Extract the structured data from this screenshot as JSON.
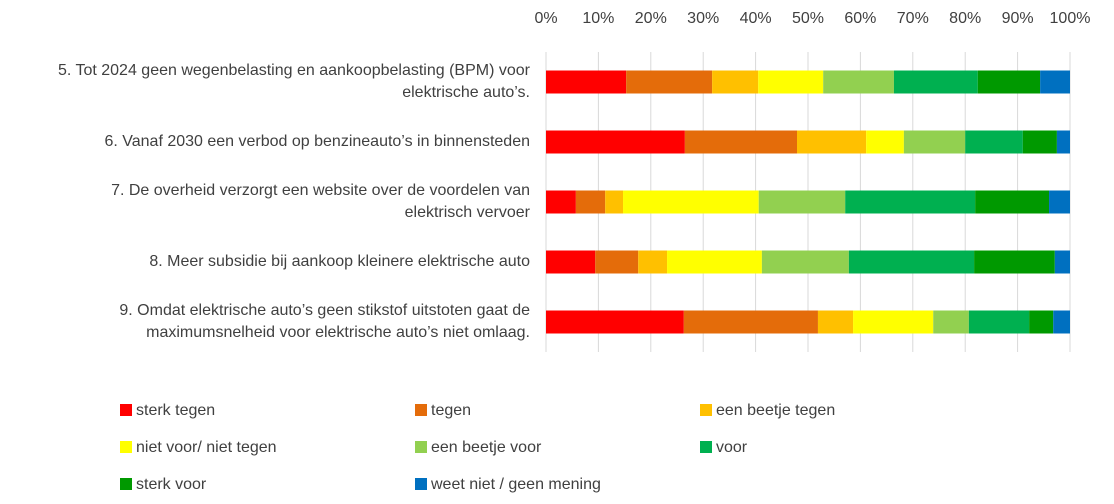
{
  "chart_data": {
    "type": "stacked-bar-horizontal",
    "categories": [
      "5. Tot 2024 geen wegenbelasting en aankoopbelasting (BPM) voor elektrische auto’s.",
      "6. Vanaf 2030 een verbod op benzineauto’s in binnensteden",
      "7. De overheid verzorgt een website over de voordelen van elektrisch vervoer",
      "8. Meer subsidie bij aankoop kleinere elektrische auto",
      "9. Omdat elektrische auto’s geen stikstof uitstoten gaat de maximumsnelheid voor elektrische auto’s niet omlaag."
    ],
    "series": [
      {
        "name": "sterk tegen",
        "color": "#ff0000",
        "values": [
          15.3,
          26.5,
          5.7,
          9.4,
          26.3
        ]
      },
      {
        "name": "tegen",
        "color": "#e46c0a",
        "values": [
          16.4,
          21.4,
          5.6,
          8.2,
          25.6
        ]
      },
      {
        "name": "een beetje tegen",
        "color": "#ffc000",
        "values": [
          8.8,
          13.2,
          3.4,
          5.5,
          6.7
        ]
      },
      {
        "name": "niet voor/ niet tegen",
        "color": "#ffff00",
        "values": [
          12.4,
          7.2,
          25.9,
          18.1,
          15.3
        ]
      },
      {
        "name": "een beetje voor",
        "color": "#92d050",
        "values": [
          13.5,
          11.7,
          16.5,
          16.6,
          6.8
        ]
      },
      {
        "name": "voor",
        "color": "#00b050",
        "values": [
          16.0,
          11.0,
          24.8,
          23.9,
          11.5
        ]
      },
      {
        "name": "sterk voor",
        "color": "#009900",
        "values": [
          11.9,
          6.5,
          14.1,
          15.4,
          4.6
        ]
      },
      {
        "name": "weet niet / geen mening",
        "color": "#0070c0",
        "values": [
          5.7,
          2.5,
          4.0,
          2.9,
          3.2
        ]
      }
    ],
    "xlim": [
      0,
      100
    ],
    "xticks": [
      {
        "value": 0,
        "label": "0%"
      },
      {
        "value": 10,
        "label": "10%"
      },
      {
        "value": 20,
        "label": "20%"
      },
      {
        "value": 30,
        "label": "30%"
      },
      {
        "value": 40,
        "label": "40%"
      },
      {
        "value": 50,
        "label": "50%"
      },
      {
        "value": 60,
        "label": "60%"
      },
      {
        "value": 70,
        "label": "70%"
      },
      {
        "value": 80,
        "label": "80%"
      },
      {
        "value": 90,
        "label": "90%"
      },
      {
        "value": 100,
        "label": "100%"
      }
    ],
    "grid": true,
    "legend": "bottom"
  }
}
